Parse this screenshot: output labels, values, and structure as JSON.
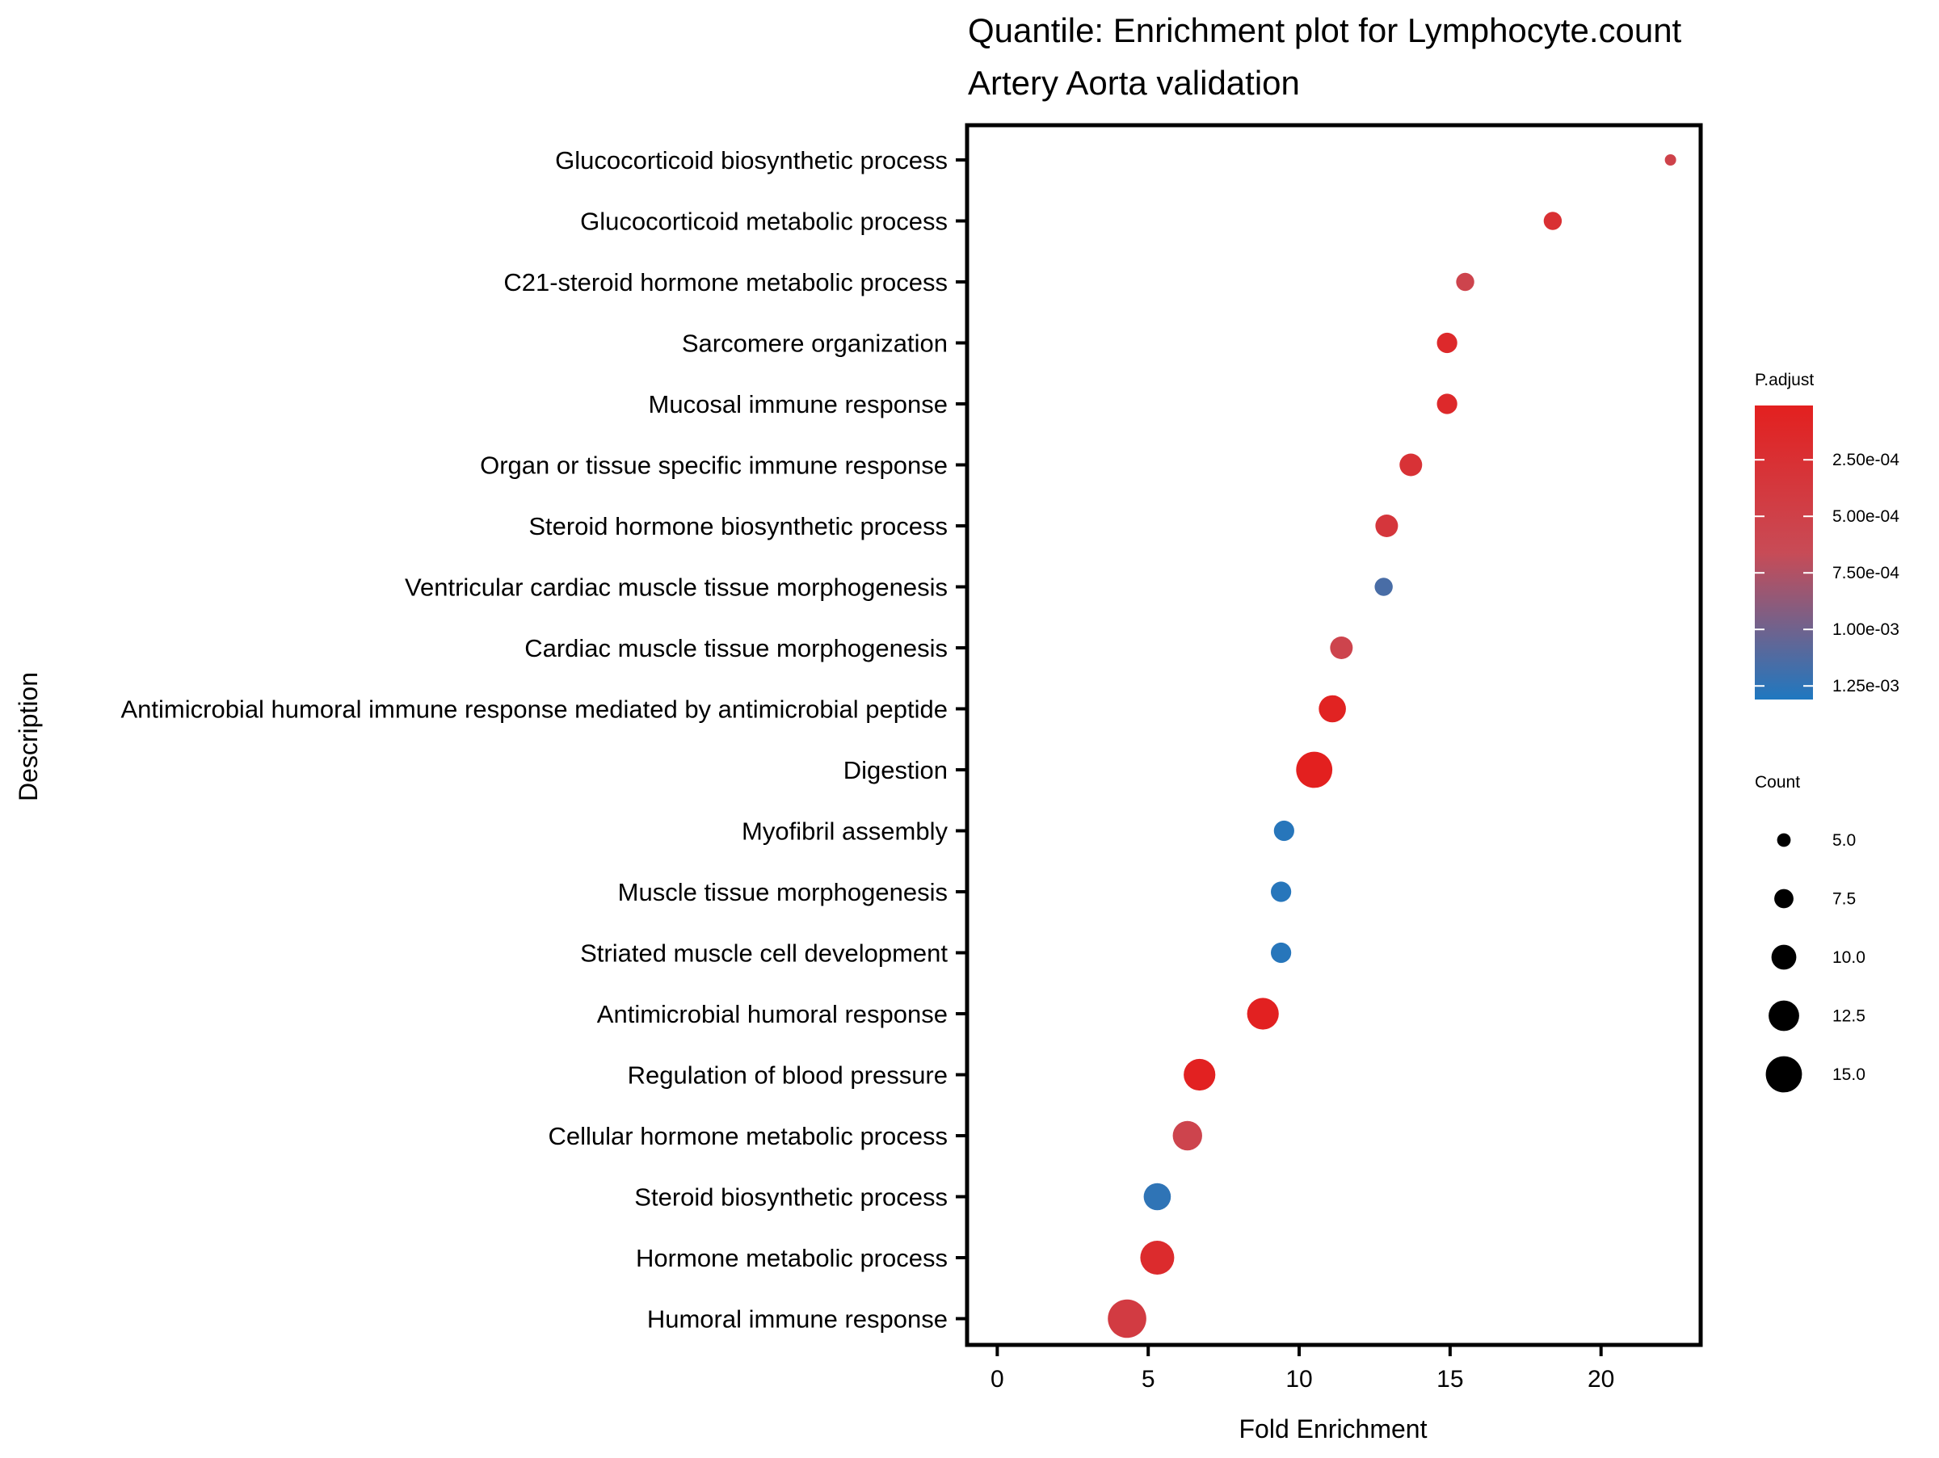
{
  "chart_data": {
    "type": "scatter",
    "title": "Quantile: Enrichment plot for Lymphocyte.count",
    "subtitle": "Artery Aorta validation",
    "xlabel": "Fold Enrichment",
    "ylabel": "Description",
    "xlim": [
      -1,
      23.3
    ],
    "xticks": [
      0,
      5,
      10,
      15,
      20
    ],
    "grid": false,
    "legend_position": "right",
    "categories": [
      "Glucocorticoid biosynthetic process",
      "Glucocorticoid metabolic process",
      "C21-steroid hormone metabolic process",
      "Sarcomere organization",
      "Mucosal immune response",
      "Organ or tissue specific immune response",
      "Steroid hormone biosynthetic process",
      "Ventricular cardiac muscle tissue morphogenesis",
      "Cardiac muscle tissue morphogenesis",
      "Antimicrobial humoral immune response mediated by antimicrobial peptide",
      "Digestion",
      "Myofibril assembly",
      "Muscle tissue morphogenesis",
      "Striated muscle cell development",
      "Antimicrobial humoral response",
      "Regulation of blood pressure",
      "Cellular hormone metabolic process",
      "Steroid biosynthetic process",
      "Hormone metabolic process",
      "Humoral immune response"
    ],
    "points": [
      {
        "x": 22.3,
        "count": 4,
        "p_adjust": 0.00052
      },
      {
        "x": 18.4,
        "count": 7,
        "p_adjust": 0.00025
      },
      {
        "x": 15.5,
        "count": 7,
        "p_adjust": 0.00055
      },
      {
        "x": 14.9,
        "count": 8,
        "p_adjust": 0.00015
      },
      {
        "x": 14.9,
        "count": 8,
        "p_adjust": 0.00015
      },
      {
        "x": 13.7,
        "count": 9,
        "p_adjust": 0.00028
      },
      {
        "x": 12.9,
        "count": 9,
        "p_adjust": 0.00035
      },
      {
        "x": 12.8,
        "count": 7,
        "p_adjust": 0.00115
      },
      {
        "x": 11.4,
        "count": 9,
        "p_adjust": 0.00055
      },
      {
        "x": 11.1,
        "count": 11,
        "p_adjust": 5e-05
      },
      {
        "x": 10.5,
        "count": 15,
        "p_adjust": 1e-05
      },
      {
        "x": 9.5,
        "count": 8,
        "p_adjust": 0.00128
      },
      {
        "x": 9.4,
        "count": 8,
        "p_adjust": 0.00128
      },
      {
        "x": 9.4,
        "count": 8,
        "p_adjust": 0.00128
      },
      {
        "x": 8.8,
        "count": 13,
        "p_adjust": 3e-05
      },
      {
        "x": 6.7,
        "count": 13,
        "p_adjust": 3e-05
      },
      {
        "x": 6.3,
        "count": 12,
        "p_adjust": 0.00055
      },
      {
        "x": 5.3,
        "count": 11,
        "p_adjust": 0.00125
      },
      {
        "x": 5.3,
        "count": 14,
        "p_adjust": 0.00018
      },
      {
        "x": 4.3,
        "count": 16,
        "p_adjust": 0.00042
      }
    ],
    "color_legend": {
      "title": "P.adjust",
      "low_color": "#e3201f",
      "mid_color": "#c84b56",
      "high_color": "#1f78c0",
      "range": [
        1e-05,
        0.00131
      ],
      "ticks": [
        0.00025,
        0.0005,
        0.00075,
        0.001,
        0.00125
      ],
      "tick_labels": [
        "2.50e-04",
        "5.00e-04",
        "7.50e-04",
        "1.00e-03",
        "1.25e-03"
      ]
    },
    "size_legend": {
      "title": "Count",
      "values": [
        5,
        7.5,
        10,
        12.5,
        15
      ],
      "labels": [
        "5.0",
        "7.5",
        "10.0",
        "12.5",
        "15.0"
      ]
    }
  }
}
